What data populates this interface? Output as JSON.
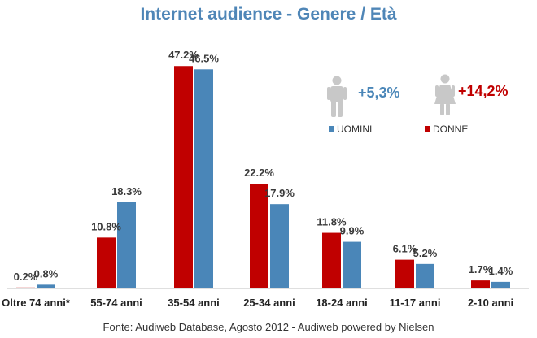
{
  "colors": {
    "title": "#4f86b7",
    "uomini": "#4a86b8",
    "donne": "#c00000",
    "axis": "#bfbfbf",
    "icon": "#c8c8c8"
  },
  "legend": {
    "uomini_label": "UOMINI",
    "donne_label": "DONNE",
    "uomini_growth": "+5,3%",
    "donne_growth": "+14,2%",
    "uomini_icon": "male-person-icon",
    "donne_icon": "female-person-icon"
  },
  "chart_data": {
    "type": "bar",
    "title": "Internet audience - Genere / Età",
    "xlabel": "",
    "ylabel": "",
    "ylim": [
      0,
      50
    ],
    "grid": false,
    "legend_position": "top-right",
    "categories": [
      "Oltre 74 anni*",
      "55-74 anni",
      "35-54 anni",
      "25-34 anni",
      "18-24 anni",
      "11-17 anni",
      "2-10 anni"
    ],
    "series": [
      {
        "name": "DONNE",
        "values": [
          0.2,
          10.8,
          47.2,
          22.2,
          11.8,
          6.1,
          1.7
        ],
        "labels": [
          "0.2%",
          "10.8%",
          "47.2%",
          "22.2%",
          "11.8%",
          "6.1%",
          "1.7%"
        ]
      },
      {
        "name": "UOMINI",
        "values": [
          0.8,
          18.3,
          46.5,
          17.9,
          9.9,
          5.2,
          1.4
        ],
        "labels": [
          "0.8%",
          "18.3%",
          "46.5%",
          "17.9%",
          "9.9%",
          "5.2%",
          "1.4%"
        ]
      }
    ]
  },
  "footer": {
    "source": "Fonte: Audiweb Database, Agosto 2012 - Audiweb powered by Nielsen"
  }
}
